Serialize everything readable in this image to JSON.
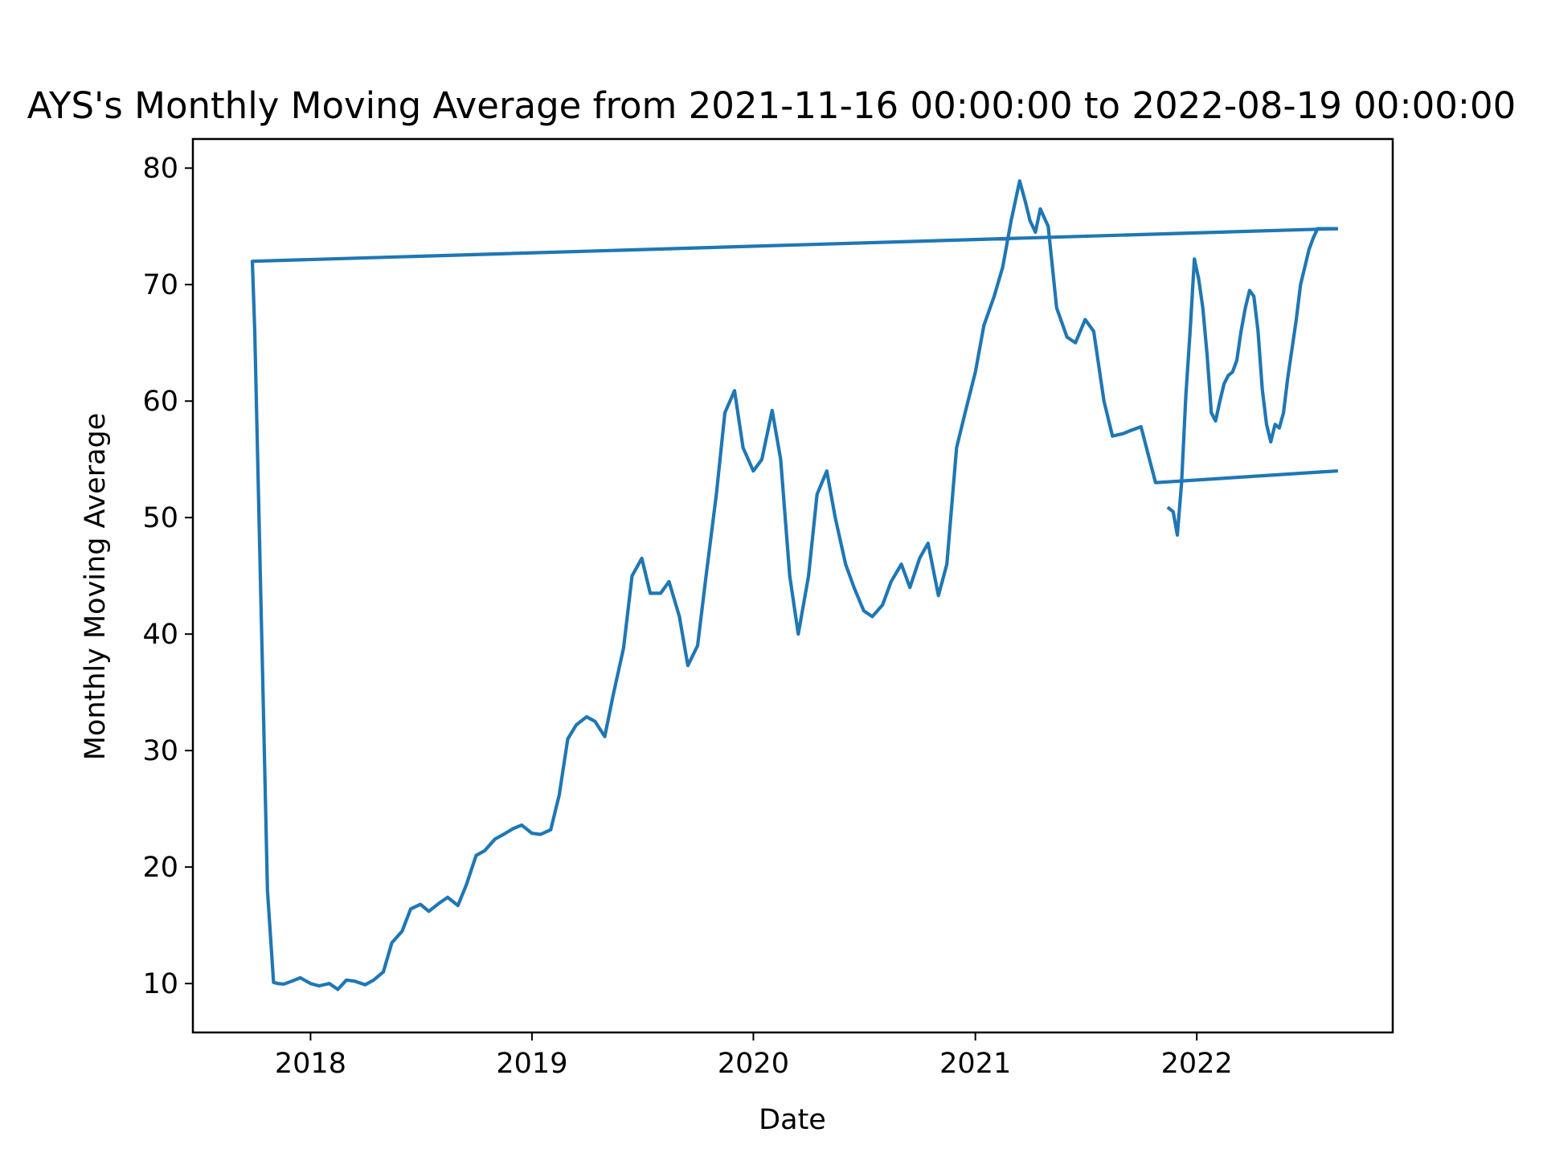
{
  "chart_data": {
    "type": "line",
    "title": "AYS's Monthly Moving Average from 2021-11-16 00:00:00 to 2022-08-19 00:00:00",
    "xlabel": "Date",
    "ylabel": "Monthly Moving Average",
    "xlim": [
      "2017-06-21",
      "2022-11-20"
    ],
    "ylim": [
      5.8,
      82.5
    ],
    "x_ticks": [
      "2018-01-01",
      "2019-01-01",
      "2020-01-01",
      "2021-01-01",
      "2022-01-01"
    ],
    "x_tick_labels": [
      "2018",
      "2019",
      "2020",
      "2021",
      "2022"
    ],
    "y_ticks": [
      10,
      20,
      30,
      40,
      50,
      60,
      70,
      80
    ],
    "y_tick_labels": [
      "10",
      "20",
      "30",
      "40",
      "50",
      "60",
      "70",
      "80"
    ],
    "grid": false,
    "legend": "none",
    "line_color": "#1f77b4",
    "series": [
      {
        "x": [
          "2022-08-19",
          "2017-09-27",
          "2017-10-01",
          "2017-10-08",
          "2017-10-15",
          "2017-10-22",
          "2017-11-01",
          "2017-11-08",
          "2017-11-18",
          "2017-12-01",
          "2017-12-15",
          "2018-01-01",
          "2018-01-15",
          "2018-02-01",
          "2018-02-15",
          "2018-03-01",
          "2018-03-15",
          "2018-04-01",
          "2018-04-15",
          "2018-05-01",
          "2018-05-15",
          "2018-06-01",
          "2018-06-15",
          "2018-07-01",
          "2018-07-15",
          "2018-08-01",
          "2018-08-15",
          "2018-09-01",
          "2018-09-15",
          "2018-10-01",
          "2018-10-15",
          "2018-11-01",
          "2018-11-15",
          "2018-12-01",
          "2018-12-15",
          "2019-01-01",
          "2019-01-15",
          "2019-02-01",
          "2019-02-15",
          "2019-03-01",
          "2019-03-15",
          "2019-04-01",
          "2019-04-15",
          "2019-05-01",
          "2019-05-15",
          "2019-06-01",
          "2019-06-15",
          "2019-07-01",
          "2019-07-15",
          "2019-08-01",
          "2019-08-15",
          "2019-09-01",
          "2019-09-15",
          "2019-10-01",
          "2019-10-15",
          "2019-11-01",
          "2019-11-15",
          "2019-12-01",
          "2019-12-15",
          "2020-01-01",
          "2020-01-15",
          "2020-02-01",
          "2020-02-15",
          "2020-03-01",
          "2020-03-15",
          "2020-04-01",
          "2020-04-15",
          "2020-05-01",
          "2020-05-15",
          "2020-06-01",
          "2020-06-15",
          "2020-07-01",
          "2020-07-15",
          "2020-08-01",
          "2020-08-15",
          "2020-09-01",
          "2020-09-15",
          "2020-10-01",
          "2020-10-15",
          "2020-11-01",
          "2020-11-15",
          "2020-12-01",
          "2020-12-15",
          "2021-01-01",
          "2021-01-15",
          "2021-02-01",
          "2021-02-15",
          "2021-03-01",
          "2021-03-15",
          "2021-03-25",
          "2021-04-01",
          "2021-04-10",
          "2021-04-18",
          "2021-05-01",
          "2021-05-15",
          "2021-06-01",
          "2021-06-15",
          "2021-07-01",
          "2021-07-15",
          "2021-08-01",
          "2021-08-15",
          "2021-09-01",
          "2021-09-15",
          "2021-10-01",
          "2021-10-15",
          "2021-10-25",
          "2022-08-19"
        ],
        "y": [
          74.8,
          72.0,
          66.0,
          50.0,
          34.0,
          18.0,
          10.1,
          10.0,
          9.95,
          10.2,
          10.5,
          10.0,
          9.8,
          10.0,
          9.5,
          10.3,
          10.2,
          9.9,
          10.3,
          11.0,
          13.5,
          14.5,
          16.4,
          16.8,
          16.2,
          16.9,
          17.4,
          16.7,
          18.5,
          21.0,
          21.4,
          22.4,
          22.8,
          23.3,
          23.6,
          22.9,
          22.8,
          23.2,
          26.2,
          31.0,
          32.2,
          32.9,
          32.5,
          31.2,
          34.8,
          38.8,
          45.0,
          46.5,
          43.5,
          43.5,
          44.5,
          41.5,
          37.3,
          39.0,
          45.0,
          52.0,
          59.0,
          60.9,
          56.0,
          54.0,
          55.0,
          59.2,
          55.0,
          45.0,
          40.0,
          45.0,
          52.0,
          54.0,
          50.0,
          46.0,
          44.0,
          42.0,
          41.5,
          42.5,
          44.5,
          46.0,
          44.0,
          46.5,
          47.8,
          43.3,
          46.0,
          56.0,
          59.0,
          62.5,
          66.5,
          69.0,
          71.5,
          75.5,
          78.9,
          77.0,
          75.5,
          74.5,
          76.5,
          75.0,
          68.0,
          65.5,
          65.0,
          67.0,
          66.0,
          60.0,
          57.0,
          57.2,
          57.5,
          57.8,
          55.0,
          53.0,
          54.0
        ]
      },
      {
        "x": [
          "2021-11-16",
          "2021-11-23",
          "2021-11-30",
          "2021-12-07",
          "2021-12-14",
          "2021-12-21",
          "2021-12-28",
          "2022-01-04",
          "2022-01-11",
          "2022-01-18",
          "2022-01-25",
          "2022-02-01",
          "2022-02-08",
          "2022-02-15",
          "2022-02-22",
          "2022-03-01",
          "2022-03-08",
          "2022-03-15",
          "2022-03-22",
          "2022-03-29",
          "2022-04-05",
          "2022-04-12",
          "2022-04-19",
          "2022-04-26",
          "2022-05-03",
          "2022-05-10",
          "2022-05-17",
          "2022-05-24",
          "2022-05-31",
          "2022-06-07",
          "2022-06-14",
          "2022-06-21",
          "2022-06-28",
          "2022-07-05",
          "2022-07-12",
          "2022-07-19",
          "2022-07-26",
          "2022-08-02",
          "2022-08-09",
          "2022-08-19"
        ],
        "y": [
          50.8,
          50.5,
          48.5,
          53.0,
          60.5,
          66.0,
          72.2,
          70.5,
          68.0,
          64.0,
          59.0,
          58.3,
          60.0,
          61.5,
          62.2,
          62.5,
          63.5,
          66.0,
          68.0,
          69.5,
          69.0,
          66.0,
          61.0,
          58.0,
          56.5,
          58.0,
          57.7,
          59.0,
          62.0,
          64.5,
          67.0,
          70.0,
          71.5,
          73.0,
          74.0,
          74.8,
          74.8,
          74.8,
          74.8,
          74.8
        ]
      }
    ]
  }
}
